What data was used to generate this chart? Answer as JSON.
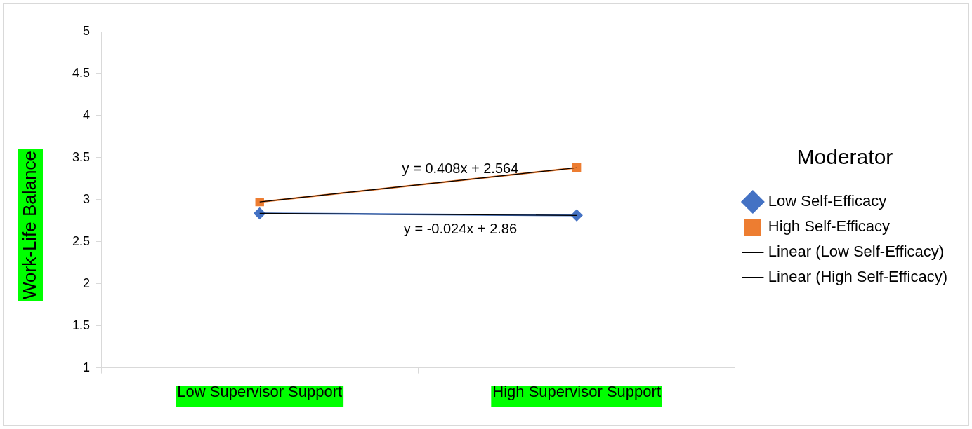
{
  "chart_data": {
    "type": "line",
    "ylabel": "Work-Life Balance",
    "legend_title": "Moderator",
    "categories": [
      "Low Supervisor Support",
      "High Supervisor Support"
    ],
    "series": [
      {
        "name": "Low Self-Efficacy",
        "color": "#4472c4",
        "values": [
          2.836,
          2.812
        ],
        "marker": "diamond"
      },
      {
        "name": "High Self-Efficacy",
        "color": "#ed7d31",
        "values": [
          2.972,
          3.38
        ],
        "marker": "square"
      },
      {
        "name": "Linear (Low Self-Efficacy)",
        "color": "#000000",
        "values": [
          2.836,
          2.812
        ],
        "marker": "none"
      },
      {
        "name": "Linear (High Self-Efficacy)",
        "color": "#000000",
        "values": [
          2.972,
          3.38
        ],
        "marker": "none"
      }
    ],
    "annotations": [
      "y = -0.024x + 2.86",
      "y = 0.408x + 2.564"
    ],
    "ylim": [
      1,
      5
    ],
    "yticks": [
      1,
      1.5,
      2,
      2.5,
      3,
      3.5,
      4,
      4.5,
      5
    ],
    "grid": false,
    "legend": "right"
  }
}
